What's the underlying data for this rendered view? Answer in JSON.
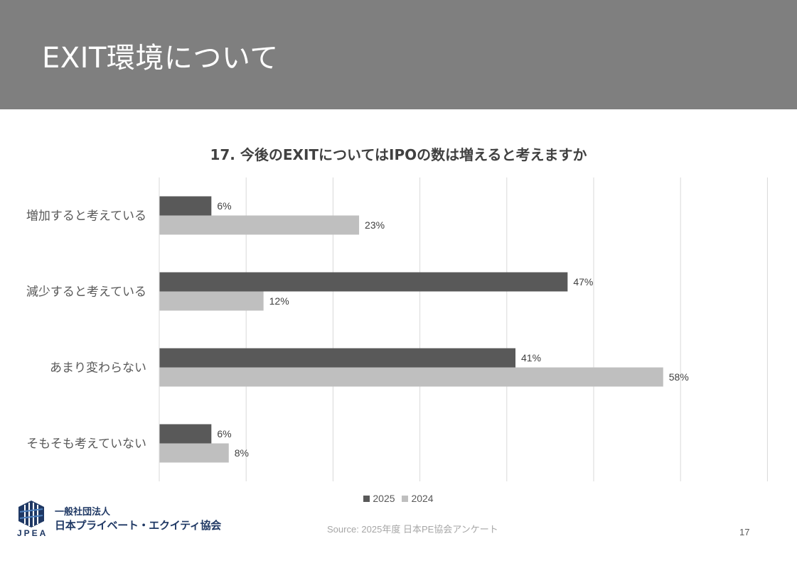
{
  "header": {
    "title": "EXIT環境について"
  },
  "chart_data": {
    "type": "bar",
    "orientation": "horizontal",
    "title": "17. 今後のEXITについてはIPOの数は増えると考えますか",
    "categories": [
      "増加すると考えている",
      "減少すると考えている",
      "あまり変わらない",
      "そもそも考えていない"
    ],
    "series": [
      {
        "name": "2025",
        "color": "#595959",
        "values": [
          6,
          47,
          41,
          6
        ],
        "labels": [
          "6%",
          "47%",
          "41%",
          "6%"
        ]
      },
      {
        "name": "2024",
        "color": "#bfbfbf",
        "values": [
          23,
          12,
          58,
          8
        ],
        "labels": [
          "23%",
          "12%",
          "58%",
          "8%"
        ]
      }
    ],
    "xlim": [
      0,
      70
    ],
    "grid": true,
    "legend_position": "bottom",
    "xlabel": "",
    "ylabel": ""
  },
  "footer": {
    "source": "Source: 2025年度 日本PE協会アンケート",
    "page_number": "17",
    "logo": {
      "acronym": "JPEA",
      "line1": "一般社団法人",
      "line2": "日本プライベート・エクイティ協会"
    }
  }
}
